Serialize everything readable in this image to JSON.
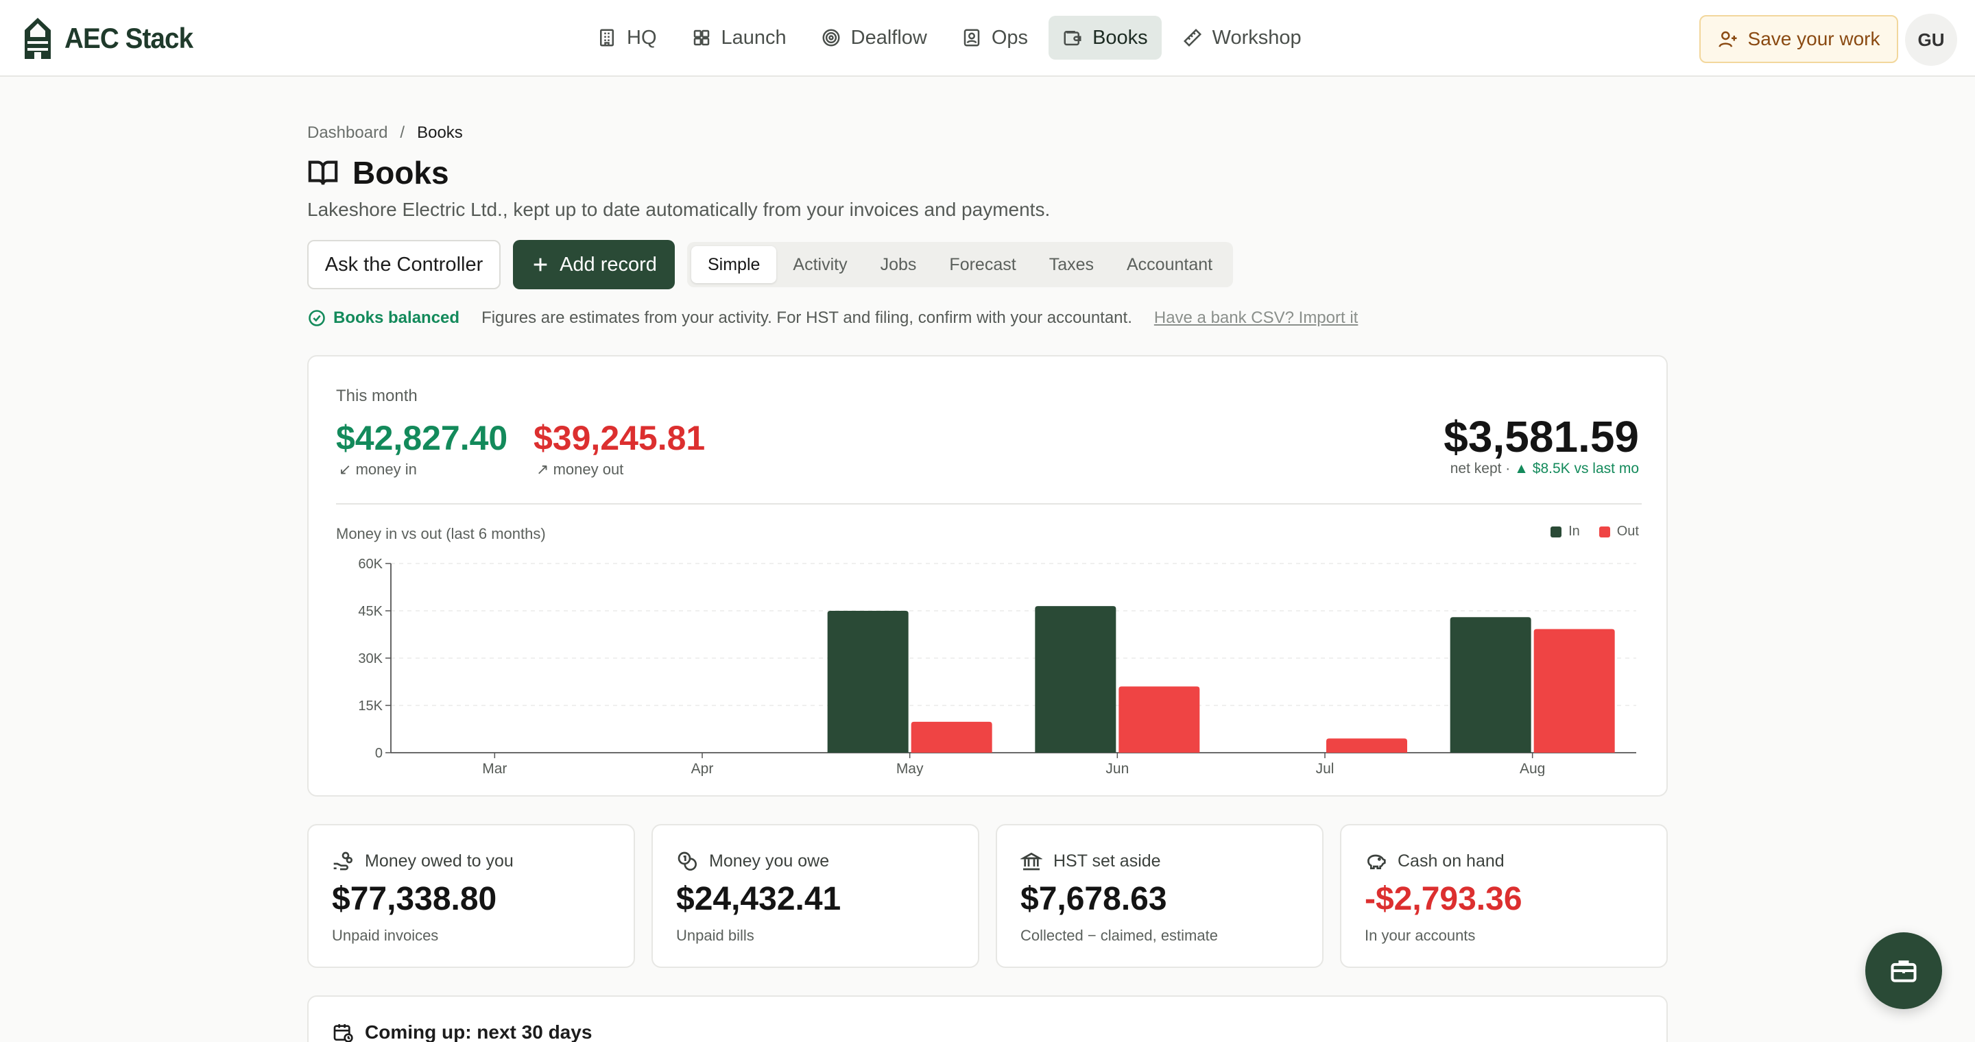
{
  "app": {
    "name": "AEC Stack"
  },
  "nav": {
    "items": [
      {
        "label": "HQ",
        "icon": "building-icon",
        "active": false
      },
      {
        "label": "Launch",
        "icon": "grid-icon",
        "active": false
      },
      {
        "label": "Dealflow",
        "icon": "target-icon",
        "active": false
      },
      {
        "label": "Ops",
        "icon": "contact-icon",
        "active": false
      },
      {
        "label": "Books",
        "icon": "wallet-icon",
        "active": true
      },
      {
        "label": "Workshop",
        "icon": "ruler-icon",
        "active": false
      }
    ],
    "save_label": "Save your work",
    "avatar_initials": "GU"
  },
  "breadcrumb": {
    "root": "Dashboard",
    "separator": "/",
    "current": "Books"
  },
  "page": {
    "title": "Books",
    "subtitle": "Lakeshore Electric Ltd., kept up to date automatically from your invoices and payments."
  },
  "actions": {
    "ask_label": "Ask the Controller",
    "add_label": "Add record"
  },
  "tabs": [
    {
      "label": "Simple",
      "active": true
    },
    {
      "label": "Activity",
      "active": false
    },
    {
      "label": "Jobs",
      "active": false
    },
    {
      "label": "Forecast",
      "active": false
    },
    {
      "label": "Taxes",
      "active": false
    },
    {
      "label": "Accountant",
      "active": false
    }
  ],
  "status": {
    "badge": "Books balanced",
    "note": "Figures are estimates from your activity. For HST and filing, confirm with your accountant.",
    "link": "Have a bank CSV? Import it"
  },
  "summary": {
    "period": "This month",
    "money_in": "$42,827.40",
    "money_in_label": "money in",
    "money_out": "$39,245.81",
    "money_out_label": "money out",
    "net": "$3,581.59",
    "net_label": "net kept ·",
    "net_delta": "▲ $8.5K vs last mo"
  },
  "chart_data": {
    "type": "bar",
    "title": "Money in vs out (last 6 months)",
    "categories": [
      "Mar",
      "Apr",
      "May",
      "Jun",
      "Jul",
      "Aug"
    ],
    "series": [
      {
        "name": "In",
        "color": "#2a4a36",
        "values": [
          0,
          0,
          45000,
          46500,
          0,
          43000
        ]
      },
      {
        "name": "Out",
        "color": "#ef4444",
        "values": [
          0,
          0,
          9800,
          21000,
          4500,
          39200
        ]
      }
    ],
    "ylim": [
      0,
      60000
    ],
    "yticks": [
      0,
      15000,
      30000,
      45000,
      60000
    ],
    "ytick_labels": [
      "0",
      "15K",
      "30K",
      "45K",
      "60K"
    ],
    "legend": "top-right",
    "grid": true
  },
  "stats": [
    {
      "icon": "hand-coins-icon",
      "label": "Money owed to you",
      "value": "$77,338.80",
      "note": "Unpaid invoices",
      "negative": false
    },
    {
      "icon": "coins-icon",
      "label": "Money you owe",
      "value": "$24,432.41",
      "note": "Unpaid bills",
      "negative": false
    },
    {
      "icon": "landmark-icon",
      "label": "HST set aside",
      "value": "$7,678.63",
      "note": "Collected − claimed, estimate",
      "negative": false
    },
    {
      "icon": "piggy-bank-icon",
      "label": "Cash on hand",
      "value": "-$2,793.36",
      "note": "In your accounts",
      "negative": true
    }
  ],
  "coming_up": {
    "title": "Coming up: next 30 days"
  }
}
